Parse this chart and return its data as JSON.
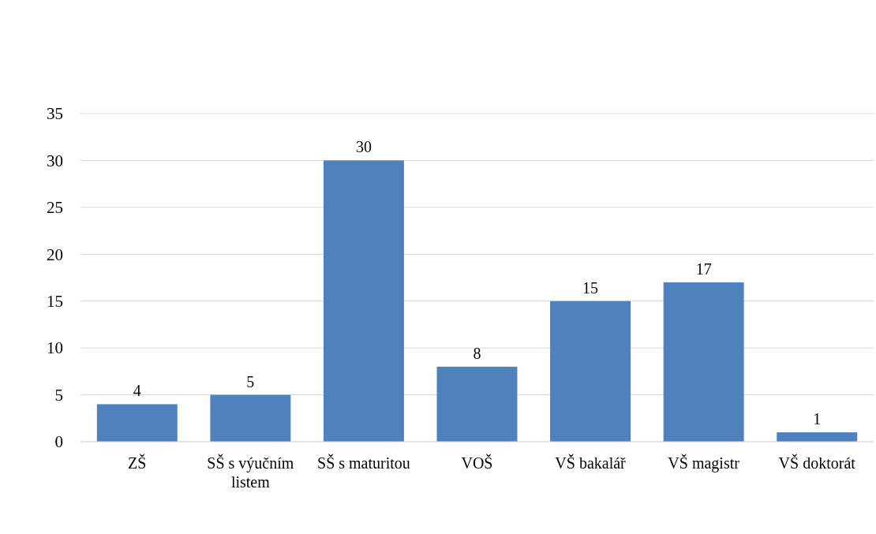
{
  "chart_data": {
    "type": "bar",
    "categories": [
      "ZŠ",
      "SŠ s výučním listem",
      "SŠ s maturitou",
      "VOŠ",
      "VŠ bakalář",
      "VŠ magistr",
      "VŠ doktorát"
    ],
    "values": [
      4,
      5,
      30,
      8,
      15,
      17,
      1
    ],
    "color": "#4f81bd",
    "ylim": [
      0,
      35
    ],
    "yticks": [
      0,
      5,
      10,
      15,
      20,
      25,
      30,
      35
    ],
    "grid": "y",
    "data_labels": true
  }
}
